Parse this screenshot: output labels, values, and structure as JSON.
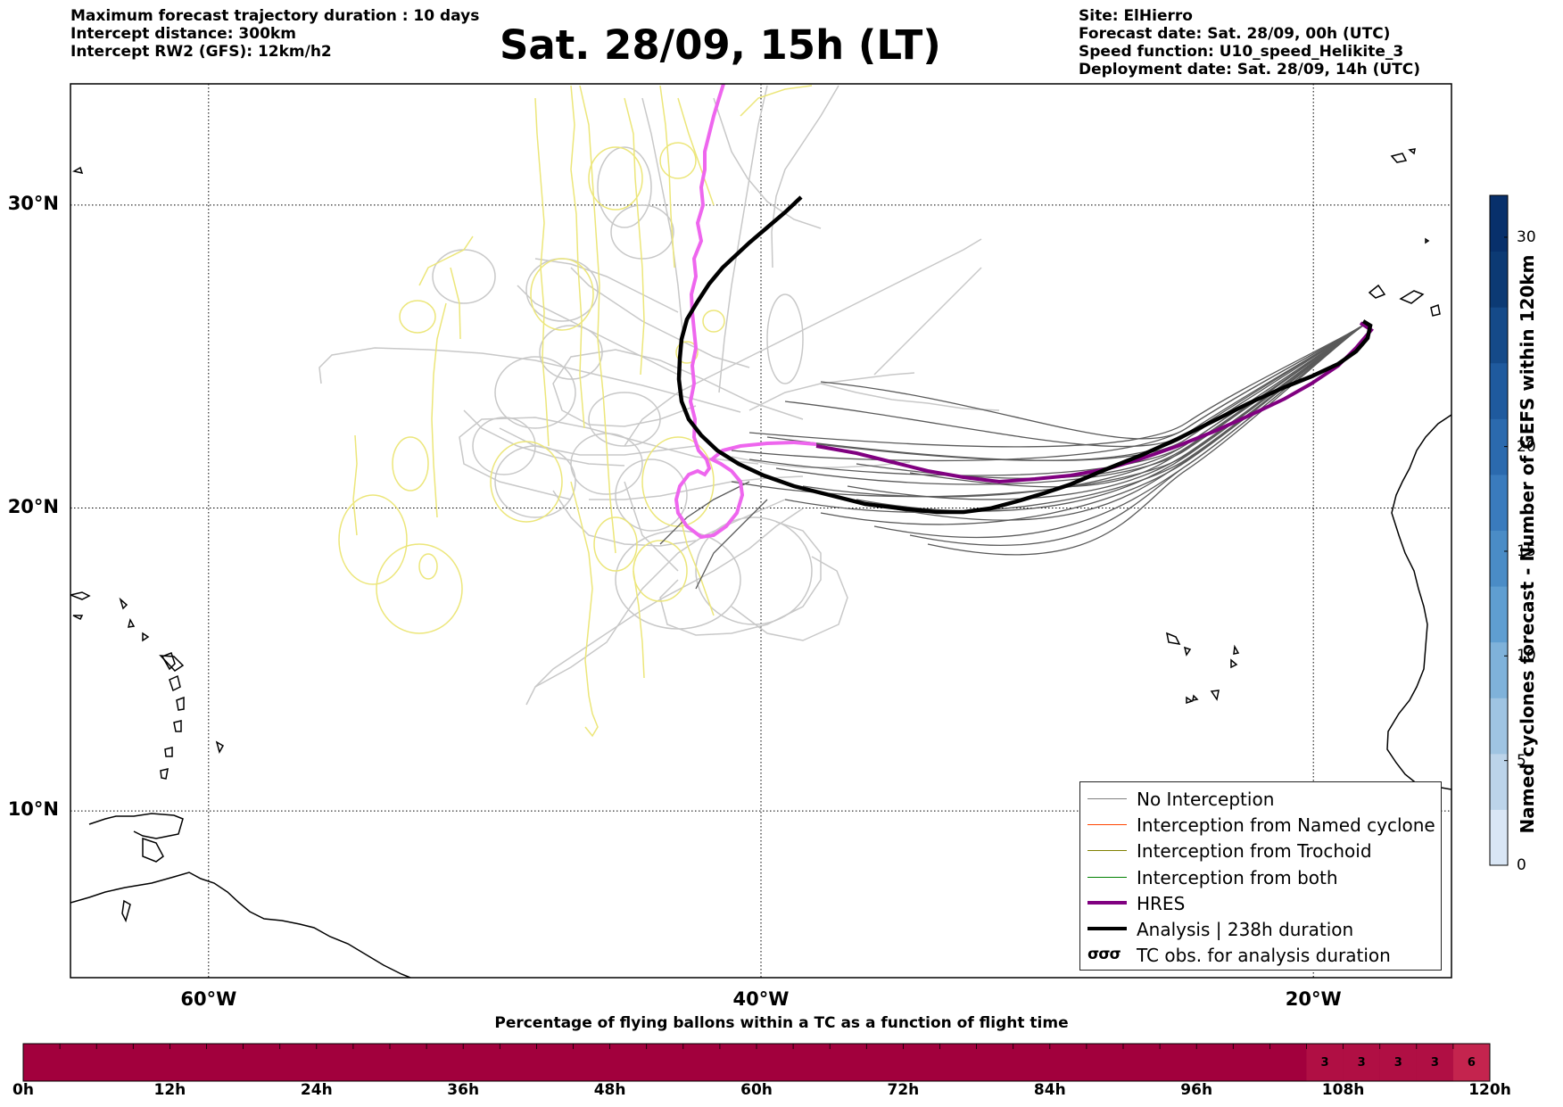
{
  "header_left": [
    "Maximum forecast trajectory duration : 10 days",
    "Intercept distance: 300km",
    "Intercept RW2 (GFS):  12km/h2"
  ],
  "title": "Sat. 28/09, 15h (LT)",
  "header_right": [
    "Site: ElHierro",
    "Forecast date: Sat. 28/09, 00h (UTC)",
    "Speed function: U10_speed_Helikite_3",
    "Deployment date: Sat. 28/09, 14h (UTC)"
  ],
  "map": {
    "lat_labels": [
      "30°N",
      "20°N",
      "10°N"
    ],
    "lon_labels": [
      "60°W",
      "40°W",
      "20°W"
    ],
    "lat_values": [
      30,
      20,
      10
    ],
    "lon_values": [
      -60,
      -40,
      -20
    ],
    "lon_range": [
      -65,
      -15
    ],
    "lat_range": [
      4.5,
      34
    ]
  },
  "legend": [
    {
      "label": "No Interception",
      "color": "#808080",
      "style": "thin"
    },
    {
      "label": "Interception from Named cyclone",
      "color": "#ff4500",
      "style": "thin"
    },
    {
      "label": "Interception from Trochoid",
      "color": "#808000",
      "style": "thin"
    },
    {
      "label": "Interception from both",
      "color": "#008000",
      "style": "thin"
    },
    {
      "label": "HRES",
      "color": "#800080",
      "style": "thick"
    },
    {
      "label": "Analysis | 238h duration",
      "color": "#000000",
      "style": "thick"
    },
    {
      "label": "TC obs. for analysis duration",
      "color": "#000000",
      "style": "symbol"
    }
  ],
  "colorbar": {
    "title": "Named cyclones forecast - Number of GEFS within 120km",
    "ticks": [
      "0",
      "5",
      "10",
      "15",
      "20",
      "30"
    ],
    "tick_values": [
      0,
      5,
      10,
      15,
      20,
      30
    ],
    "max": 32,
    "colors": [
      "#d9e6f5",
      "#bcd4ea",
      "#9fc4e2",
      "#7fb2da",
      "#5f9ed1",
      "#4a8cc6",
      "#3a7bbd",
      "#2b6aae",
      "#1f5a9e",
      "#154a89",
      "#0c3a74",
      "#08306b"
    ]
  },
  "bottom_bar": {
    "title": "Percentage of flying ballons within a TC as a function of flight time",
    "time_labels": [
      "0h",
      "12h",
      "24h",
      "36h",
      "48h",
      "60h",
      "72h",
      "84h",
      "96h",
      "108h",
      "120h"
    ],
    "time_values": [
      0,
      12,
      24,
      36,
      48,
      60,
      72,
      84,
      96,
      108,
      120
    ],
    "base_color": "#a2003d",
    "cells": [
      {
        "start_h": 105,
        "end_h": 108,
        "value": "3",
        "color": "#b00f44"
      },
      {
        "start_h": 108,
        "end_h": 111,
        "value": "3",
        "color": "#b00f44"
      },
      {
        "start_h": 111,
        "end_h": 114,
        "value": "3",
        "color": "#b00f44"
      },
      {
        "start_h": 114,
        "end_h": 117,
        "value": "3",
        "color": "#b00f44"
      },
      {
        "start_h": 117,
        "end_h": 120,
        "value": "6",
        "color": "#c4244e"
      }
    ]
  },
  "colors": {
    "ensemble_no_interception": "#5a5a5a",
    "light_members": "#c8c8c8",
    "trochoid_members": "#ece67a",
    "hres": "#800080",
    "analysis": "#000000",
    "magenta_track": "#ee66ee"
  }
}
